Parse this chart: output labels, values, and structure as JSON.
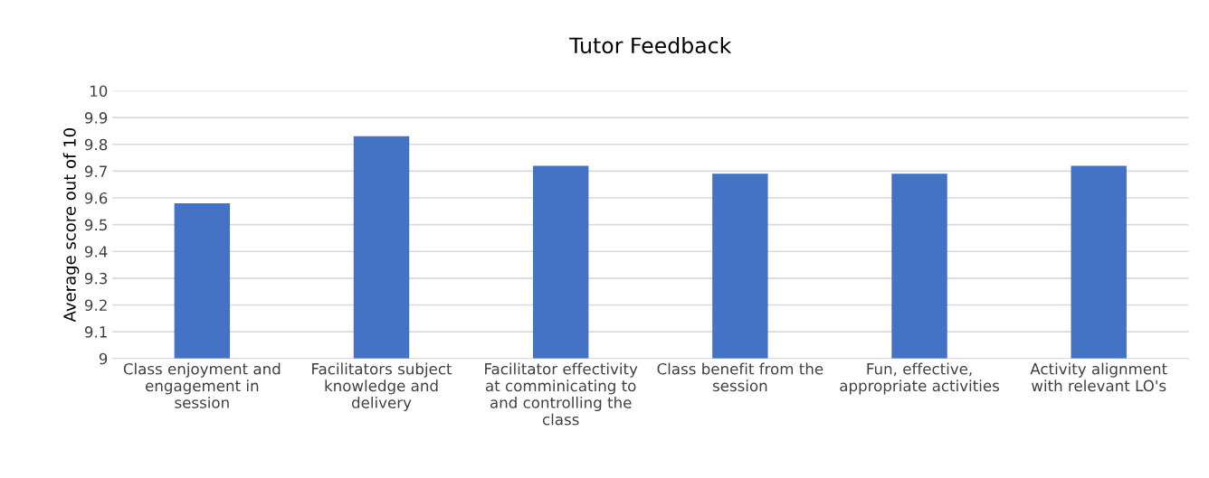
{
  "chart_data": {
    "type": "bar",
    "title": "Tutor Feedback",
    "ylabel": "Average score out of 10",
    "categories": [
      "Class enjoyment and\nengagement in\nsession",
      "Facilitators subject\nknowledge and\ndelivery",
      "Facilitator effectivity\nat comminicating to\nand controlling the\nclass",
      "Class benefit from the\nsession",
      "Fun, effective,\nappropriate activities",
      "Activity alignment\nwith relevant LO's"
    ],
    "values": [
      9.58,
      9.83,
      9.72,
      9.69,
      9.69,
      9.72
    ],
    "color": "#4472c4",
    "ylim": [
      9,
      10
    ],
    "yticks": [
      {
        "value": 9,
        "label": "9"
      },
      9.1,
      9.2,
      9.3,
      9.4,
      9.5,
      9.6,
      9.7,
      9.8,
      9.9,
      {
        "value": 10,
        "label": "10"
      }
    ],
    "grid": "y",
    "legend": false
  }
}
